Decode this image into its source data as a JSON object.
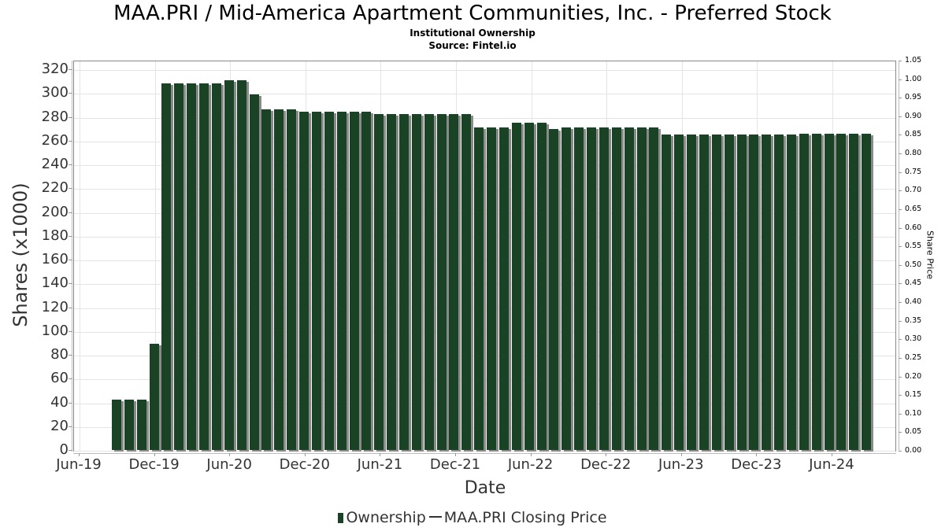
{
  "header": {
    "title": "MAA.PRI / Mid-America Apartment Communities, Inc. - Preferred Stock",
    "subtitle": "Institutional Ownership",
    "source": "Source: Fintel.io"
  },
  "legend": {
    "ownership": "Ownership",
    "price": "MAA.PRI Closing Price"
  },
  "colors": {
    "bar": "#1a4326",
    "shadow": "#8a8a8a",
    "grid": "#e4e4e4"
  },
  "chart_data": {
    "type": "bar",
    "title": "MAA.PRI / Mid-America Apartment Communities, Inc. - Preferred Stock",
    "subtitle": "Institutional Ownership / Source: Fintel.io",
    "xlabel": "Date",
    "ylabel": "Shares (x1000)",
    "ylabel_right": "Share Price",
    "ylim": [
      0,
      320
    ],
    "ylim_right": [
      0.0,
      1.05
    ],
    "grid": true,
    "legend_position": "bottom",
    "legend": [
      "Ownership",
      "MAA.PRI Closing Price"
    ],
    "x_tick_labels": [
      "Jun-19",
      "Dec-19",
      "Jun-20",
      "Dec-20",
      "Jun-21",
      "Dec-21",
      "Jun-22",
      "Dec-22",
      "Jun-23",
      "Dec-23",
      "Jun-24"
    ],
    "y_tick_labels": [
      "0",
      "20",
      "40",
      "60",
      "80",
      "100",
      "120",
      "140",
      "160",
      "180",
      "200",
      "220",
      "240",
      "260",
      "280",
      "300",
      "320"
    ],
    "y_right_tick_labels": [
      "0.00",
      "0.05",
      "0.10",
      "0.15",
      "0.20",
      "0.25",
      "0.30",
      "0.35",
      "0.40",
      "0.45",
      "0.50",
      "0.55",
      "0.60",
      "0.65",
      "0.70",
      "0.75",
      "0.80",
      "0.85",
      "0.90",
      "0.95",
      "1.00",
      "1.05"
    ],
    "series": [
      {
        "name": "Ownership",
        "values": [
          42,
          42,
          42,
          89,
          308,
          308,
          308,
          308,
          308,
          311,
          311,
          299,
          286,
          286,
          286,
          284,
          284,
          284,
          284,
          284,
          284,
          282,
          282,
          282,
          282,
          282,
          282,
          282,
          282,
          271,
          271,
          271,
          275,
          275,
          275,
          270,
          271,
          271,
          271,
          271,
          271,
          271,
          271,
          271,
          265,
          265,
          265,
          265,
          265,
          265,
          265,
          265,
          265,
          265,
          265,
          266,
          266,
          266,
          266,
          266,
          266
        ]
      },
      {
        "name": "MAA.PRI Closing Price",
        "values": []
      }
    ]
  }
}
